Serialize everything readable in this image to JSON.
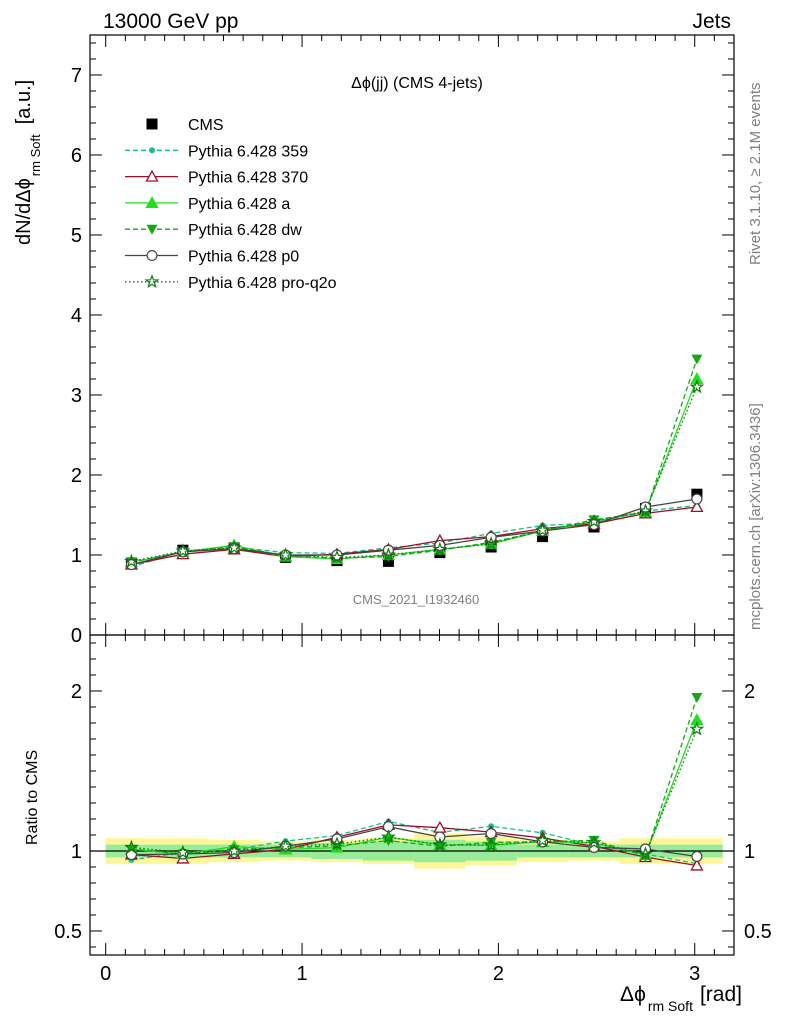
{
  "header": {
    "left": "13000 GeV pp",
    "right": "Jets"
  },
  "title": "Δϕ(jj) (CMS 4-jets)",
  "watermark": "CMS_2021_I1932460",
  "side_text": {
    "rivet": "Rivet 3.1.10, ≥ 2.1M events",
    "mcplots": "mcplots.cern.ch [arXiv:1306.3436]"
  },
  "ylabel_main": {
    "base": "dN/dΔϕ",
    "sub": "rm Soft",
    "unit": "[a.u.]"
  },
  "ylabel_ratio": "Ratio to CMS",
  "xlabel": {
    "base": "Δϕ",
    "sub": "rm Soft",
    "unit": "[rad]"
  },
  "chart_data": {
    "type": "line",
    "x": [
      0.131,
      0.393,
      0.654,
      0.916,
      1.178,
      1.44,
      1.702,
      1.963,
      2.225,
      2.487,
      2.749,
      3.011
    ],
    "xlim": [
      -0.08,
      3.2
    ],
    "xticks": [
      "0",
      "1",
      "2",
      "3"
    ],
    "main": {
      "ylim": [
        0,
        7.5
      ],
      "yticks": [
        "0",
        "1",
        "2",
        "3",
        "4",
        "5",
        "6",
        "7"
      ]
    },
    "ratio": {
      "ylim": [
        0.35,
        2.35
      ],
      "yticks": [
        "0.5",
        "1",
        "2"
      ]
    },
    "band_ratio": {
      "inner": [
        0.04,
        0.04,
        0.04,
        0.04,
        0.05,
        0.06,
        0.07,
        0.06,
        0.04,
        0.04,
        0.04,
        0.04
      ],
      "outer": [
        0.08,
        0.08,
        0.07,
        0.06,
        0.07,
        0.08,
        0.11,
        0.09,
        0.07,
        0.06,
        0.08,
        0.08
      ]
    },
    "series": [
      {
        "name": "CMS",
        "color": "#000000",
        "dash": "",
        "marker": "square",
        "line": false,
        "values": [
          0.9,
          1.06,
          1.09,
          0.97,
          0.93,
          0.92,
          1.03,
          1.1,
          1.23,
          1.35,
          1.58,
          1.76
        ]
      },
      {
        "name": "Pythia 6.428 359",
        "color": "#1abc8c",
        "dash": "5,3",
        "marker": "dot",
        "values": [
          0.85,
          1.05,
          1.1,
          1.03,
          1.02,
          1.09,
          1.15,
          1.27,
          1.37,
          1.4,
          1.55,
          1.62
        ]
      },
      {
        "name": "Pythia 6.428 370",
        "color": "#9b1026",
        "dash": "",
        "marker": "triangle-open",
        "values": [
          0.88,
          1.01,
          1.07,
          0.98,
          1.01,
          1.07,
          1.18,
          1.23,
          1.33,
          1.39,
          1.52,
          1.6
        ]
      },
      {
        "name": "Pythia 6.428 a",
        "color": "#22dd22",
        "dash": "",
        "marker": "triangle",
        "values": [
          0.91,
          1.04,
          1.12,
          0.98,
          0.95,
          1.0,
          1.07,
          1.14,
          1.3,
          1.42,
          1.54,
          3.2
        ]
      },
      {
        "name": "Pythia 6.428 dw",
        "color": "#16a816",
        "dash": "5,3",
        "marker": "triangle-down",
        "values": [
          0.91,
          1.04,
          1.1,
          0.99,
          0.96,
          0.98,
          1.06,
          1.16,
          1.3,
          1.44,
          1.53,
          3.45
        ]
      },
      {
        "name": "Pythia 6.428 p0",
        "color": "#444444",
        "dash": "",
        "marker": "circle-open",
        "values": [
          0.88,
          1.04,
          1.08,
          1.0,
          1.0,
          1.06,
          1.12,
          1.22,
          1.3,
          1.38,
          1.6,
          1.7
        ]
      },
      {
        "name": "Pythia 6.428 pro-q2o",
        "color": "#0c7a0c",
        "dash": "1.5,2.5",
        "marker": "star",
        "values": [
          0.92,
          1.05,
          1.09,
          1.0,
          0.97,
          1.0,
          1.07,
          1.14,
          1.31,
          1.42,
          1.55,
          3.1
        ]
      }
    ]
  }
}
